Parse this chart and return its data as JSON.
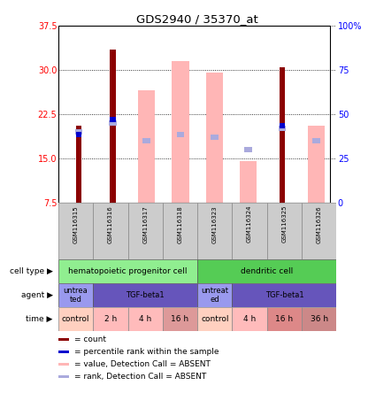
{
  "title": "GDS2940 / 35370_at",
  "samples": [
    "GSM116315",
    "GSM116316",
    "GSM116317",
    "GSM116318",
    "GSM116323",
    "GSM116324",
    "GSM116325",
    "GSM116326"
  ],
  "count_values": [
    20.5,
    33.5,
    0,
    0,
    0,
    0,
    30.5,
    0
  ],
  "count_color": "#8B0000",
  "value_absent": [
    0,
    0,
    26.5,
    31.5,
    29.5,
    14.5,
    0,
    20.5
  ],
  "value_absent_color": "#FFB6B6",
  "rank_absent_values": [
    19.5,
    21.0,
    18.0,
    19.0,
    18.5,
    16.5,
    20.0,
    18.0
  ],
  "rank_absent_color": "#AAAADD",
  "percentile_rank_values": [
    19.0,
    21.5,
    0,
    0,
    0,
    0,
    20.5,
    0
  ],
  "percentile_rank_color": "#0000CD",
  "ylim_left": [
    7.5,
    37.5
  ],
  "ylim_right": [
    0,
    100
  ],
  "yticks_left": [
    7.5,
    15.0,
    22.5,
    30.0,
    37.5
  ],
  "yticks_right": [
    0,
    25,
    50,
    75,
    100
  ],
  "cell_type_labels": [
    [
      "hematopoietic progenitor cell",
      0,
      4
    ],
    [
      "dendritic cell",
      4,
      8
    ]
  ],
  "cell_type_color_left": "#90EE90",
  "cell_type_color_right": "#55CC55",
  "agent_labels": [
    [
      "untrea\nted",
      0,
      1
    ],
    [
      "TGF-beta1",
      1,
      4
    ],
    [
      "untreat\ned",
      4,
      5
    ],
    [
      "TGF-beta1",
      5,
      8
    ]
  ],
  "agent_color_light": "#9999EE",
  "agent_color_dark": "#6655BB",
  "time_labels": [
    [
      "control",
      0,
      1
    ],
    [
      "2 h",
      1,
      2
    ],
    [
      "4 h",
      2,
      3
    ],
    [
      "16 h",
      3,
      4
    ],
    [
      "control",
      4,
      5
    ],
    [
      "4 h",
      5,
      6
    ],
    [
      "16 h",
      6,
      7
    ],
    [
      "36 h",
      7,
      8
    ]
  ],
  "time_color_control": "#FFD0C0",
  "time_color_2h": "#FFBBBB",
  "time_color_4h": "#FFBBBB",
  "time_color_16h": "#DD9999",
  "time_color_4h_dc": "#FFBBBB",
  "time_color_16h_dc": "#DD8888",
  "time_color_36h": "#CC8888",
  "legend_items": [
    [
      "count",
      "#8B0000"
    ],
    [
      "percentile rank within the sample",
      "#0000CD"
    ],
    [
      "value, Detection Call = ABSENT",
      "#FFB6B6"
    ],
    [
      "rank, Detection Call = ABSENT",
      "#AAAADD"
    ]
  ],
  "bar_width": 0.5,
  "figsize": [
    4.25,
    4.44
  ],
  "dpi": 100
}
